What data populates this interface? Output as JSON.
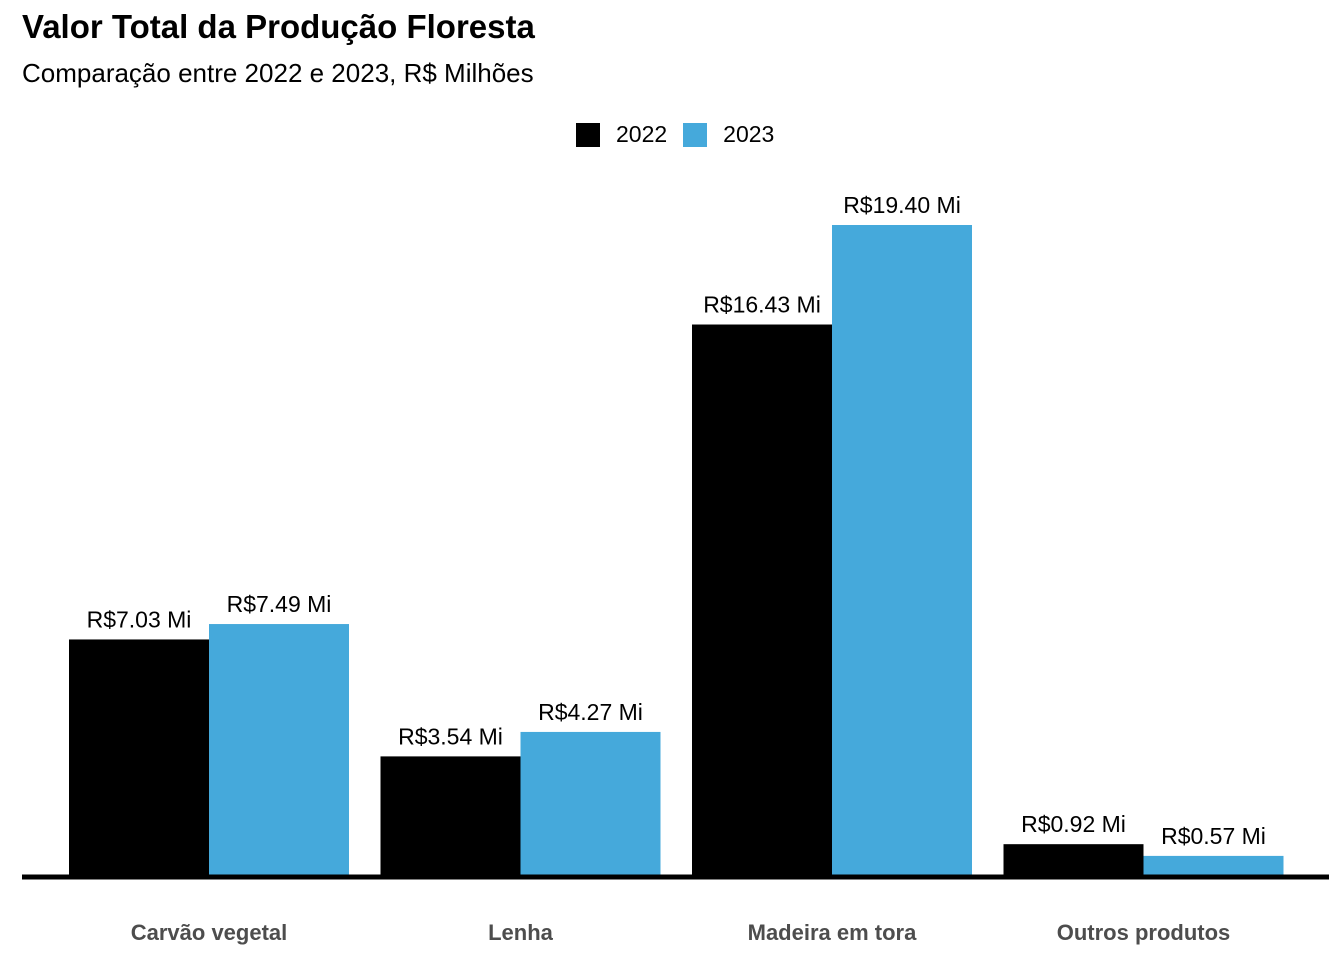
{
  "chart_data": {
    "type": "bar",
    "title": "Valor Total da Produção Floresta",
    "subtitle": "Comparação entre 2022 e 2023, R$ Milhões",
    "categories": [
      "Carvão vegetal",
      "Lenha",
      "Madeira em tora",
      "Outros produtos"
    ],
    "series": [
      {
        "name": "2022",
        "color": "#000000",
        "values": [
          7.03,
          3.54,
          16.43,
          0.92
        ],
        "labels": [
          "R$7.03 Mi",
          "R$3.54 Mi",
          "R$16.43 Mi",
          "R$0.92 Mi"
        ]
      },
      {
        "name": "2023",
        "color": "#45A9DB",
        "values": [
          7.49,
          4.27,
          19.4,
          0.57
        ],
        "labels": [
          "R$7.49 Mi",
          "R$4.27 Mi",
          "R$19.40 Mi",
          "R$0.57 Mi"
        ]
      }
    ],
    "xlabel": "",
    "ylabel": "",
    "ylim": [
      0,
      19.4
    ],
    "grid": false,
    "legend_position": "top-center"
  }
}
